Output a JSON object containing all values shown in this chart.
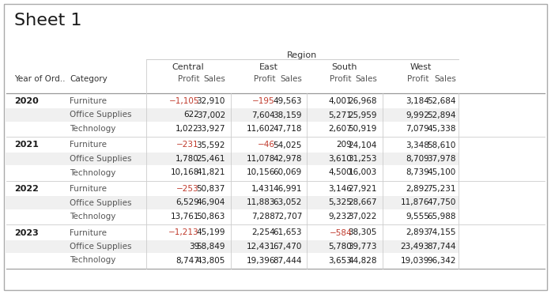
{
  "title": "Sheet 1",
  "region_header": "Region",
  "col_groups": [
    "Central",
    "East",
    "South",
    "West"
  ],
  "years": [
    "2020",
    "2021",
    "2022",
    "2023"
  ],
  "categories": [
    "Furniture",
    "Office Supplies",
    "Technology"
  ],
  "data": {
    "2020": {
      "Furniture": {
        "Central": [
          -1105,
          32910
        ],
        "East": [
          -195,
          49563
        ],
        "South": [
          4001,
          26968
        ],
        "West": [
          3184,
          52684
        ]
      },
      "Office Supplies": {
        "Central": [
          622,
          37002
        ],
        "East": [
          7604,
          38159
        ],
        "South": [
          5271,
          25959
        ],
        "West": [
          9992,
          52894
        ]
      },
      "Technology": {
        "Central": [
          1022,
          33927
        ],
        "East": [
          11602,
          47718
        ],
        "South": [
          2607,
          50919
        ],
        "West": [
          7079,
          45338
        ]
      }
    },
    "2021": {
      "Furniture": {
        "Central": [
          -231,
          35592
        ],
        "East": [
          -46,
          54025
        ],
        "South": [
          209,
          24104
        ],
        "West": [
          3348,
          58610
        ]
      },
      "Office Supplies": {
        "Central": [
          1780,
          25461
        ],
        "East": [
          11078,
          42978
        ],
        "South": [
          3610,
          31253
        ],
        "West": [
          8709,
          37978
        ]
      },
      "Technology": {
        "Central": [
          10168,
          41821
        ],
        "East": [
          10156,
          60069
        ],
        "South": [
          4500,
          16003
        ],
        "West": [
          8739,
          45100
        ]
      }
    },
    "2022": {
      "Furniture": {
        "Central": [
          -253,
          50837
        ],
        "East": [
          1431,
          46991
        ],
        "South": [
          3146,
          27921
        ],
        "West": [
          2892,
          75231
        ]
      },
      "Office Supplies": {
        "Central": [
          6529,
          46904
        ],
        "East": [
          11883,
          63052
        ],
        "South": [
          5325,
          28667
        ],
        "West": [
          11876,
          47750
        ]
      },
      "Technology": {
        "Central": [
          13761,
          50863
        ],
        "East": [
          7288,
          72707
        ],
        "South": [
          9232,
          37022
        ],
        "West": [
          9555,
          65988
        ]
      }
    },
    "2023": {
      "Furniture": {
        "Central": [
          -1213,
          45199
        ],
        "East": [
          2254,
          61653
        ],
        "South": [
          -584,
          38305
        ],
        "West": [
          2893,
          74155
        ]
      },
      "Office Supplies": {
        "Central": [
          39,
          58849
        ],
        "East": [
          12431,
          67470
        ],
        "South": [
          5780,
          39773
        ],
        "West": [
          23493,
          87744
        ]
      },
      "Technology": {
        "Central": [
          8747,
          43805
        ],
        "East": [
          19396,
          87444
        ],
        "South": [
          3653,
          44828
        ],
        "West": [
          19039,
          96342
        ]
      }
    }
  },
  "bg_color": "#ffffff",
  "alt_row_color": "#f0f0f0",
  "title_fontsize": 16,
  "header_fontsize": 7.5,
  "cell_fontsize": 7.5,
  "neg_color": "#c0392b",
  "pos_color": "#1a1a1a",
  "sales_color": "#1a1a1a",
  "category_color": "#555555",
  "year_color": "#1a1a1a",
  "divider_color": "#cccccc",
  "strong_divider_color": "#999999"
}
